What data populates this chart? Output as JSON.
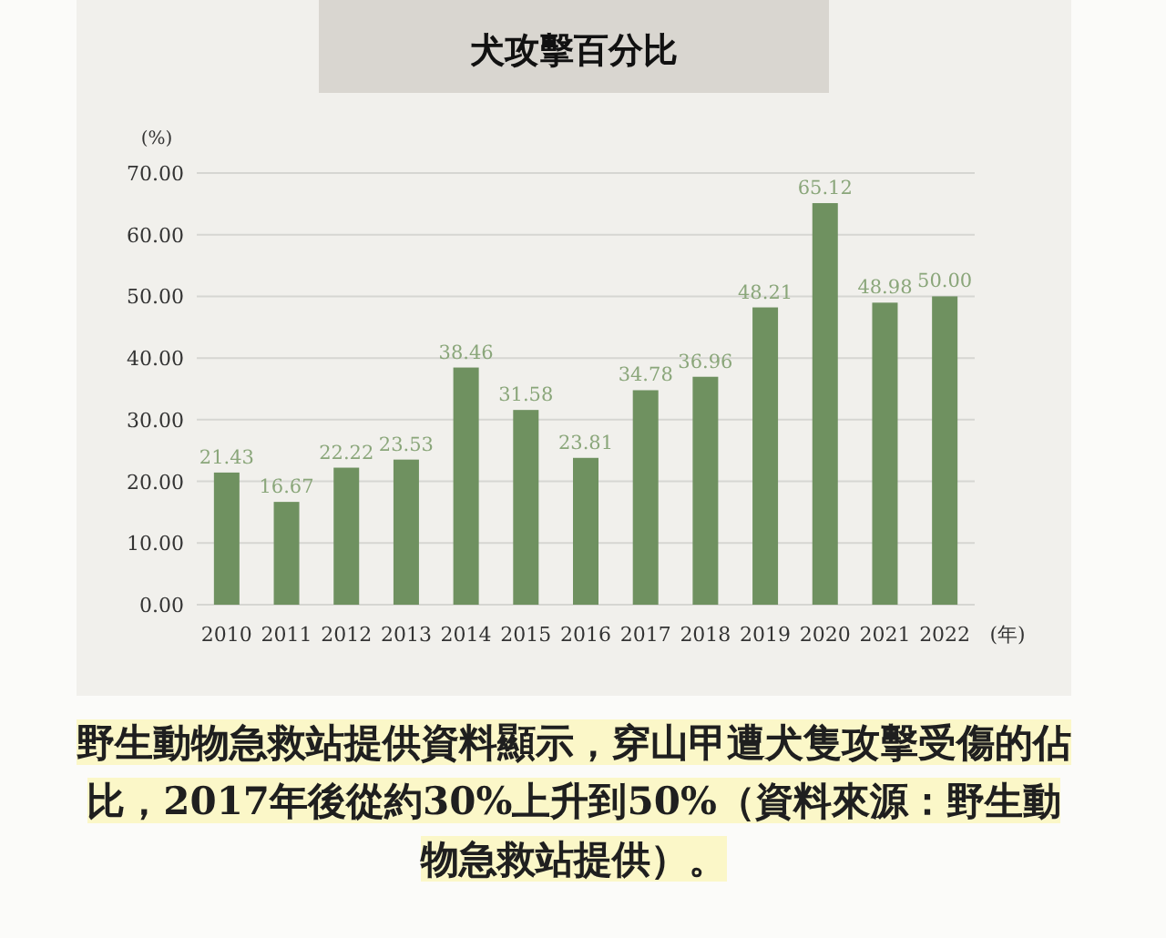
{
  "chart_data": {
    "type": "bar",
    "title": "犬攻擊百分比",
    "categories": [
      "2010",
      "2011",
      "2012",
      "2013",
      "2014",
      "2015",
      "2016",
      "2017",
      "2018",
      "2019",
      "2020",
      "2021",
      "2022"
    ],
    "values": [
      21.43,
      16.67,
      22.22,
      23.53,
      38.46,
      31.58,
      23.81,
      34.78,
      36.96,
      48.21,
      65.12,
      48.98,
      50.0
    ],
    "value_labels": [
      "21.43",
      "16.67",
      "22.22",
      "23.53",
      "38.46",
      "31.58",
      "23.81",
      "34.78",
      "36.96",
      "48.21",
      "65.12",
      "48.98",
      "50.00"
    ],
    "color": "#6f9160",
    "ylim": [
      0,
      70
    ],
    "yticks": [
      {
        "value": 0,
        "label": "0.00"
      },
      {
        "value": 10,
        "label": "10.00"
      },
      {
        "value": 20,
        "label": "20.00"
      },
      {
        "value": 30,
        "label": "30.00"
      },
      {
        "value": 40,
        "label": "40.00"
      },
      {
        "value": 50,
        "label": "50.00"
      },
      {
        "value": 60,
        "label": "60.00"
      },
      {
        "value": 70,
        "label": "70.00"
      }
    ],
    "ylabel": "(%)",
    "xlabel": "(年)",
    "grid": "y",
    "annotations": [
      "野生動物急救站提供資料顯示，穿山甲遭犬隻攻擊受傷的佔比，2017年後從約30%上升到50%（資料來源：野生動物急救站提供）。"
    ]
  }
}
